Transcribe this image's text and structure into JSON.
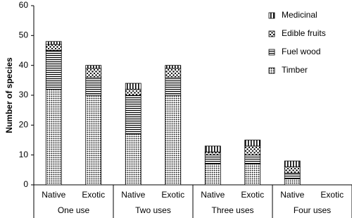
{
  "chart_data": {
    "type": "stacked-bar",
    "y_label": "Number of species",
    "categories": [
      "Native",
      "Exotic",
      "Native",
      "Exotic",
      "Native",
      "Exotic",
      "Native",
      "Exotic"
    ],
    "groups": [
      "One use",
      "Two uses",
      "Three uses",
      "Four uses"
    ],
    "series": [
      {
        "name": "Timber",
        "color": "#000000",
        "values": [
          32,
          30,
          17,
          30,
          7,
          7,
          2,
          0
        ]
      },
      {
        "name": "Fuel wood",
        "color": "#000000",
        "values": [
          13,
          6,
          13,
          6,
          3,
          3,
          2,
          0
        ]
      },
      {
        "name": "Edible fruits",
        "color": "#000000",
        "values": [
          2,
          3,
          2,
          3,
          1,
          3,
          2,
          0
        ]
      },
      {
        "name": "Medicinal",
        "color": "#000000",
        "values": [
          1,
          1,
          2,
          1,
          2,
          2,
          2,
          0
        ]
      }
    ],
    "ylim": [
      0,
      60
    ],
    "yticks": [
      0,
      10,
      20,
      30,
      40,
      50,
      60
    ]
  }
}
